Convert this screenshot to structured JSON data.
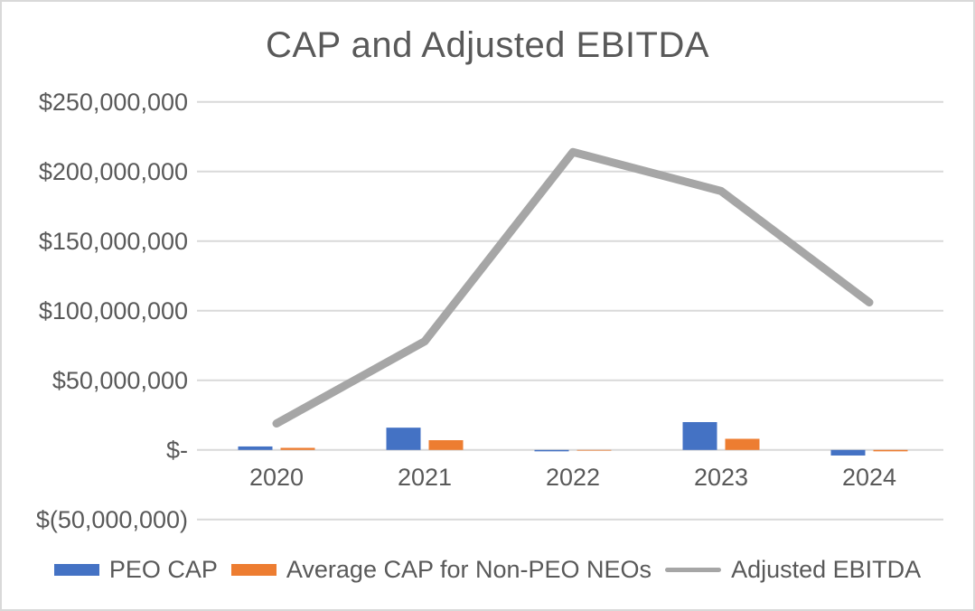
{
  "chart_data": {
    "type": "bar",
    "title": "CAP and Adjusted EBITDA",
    "categories": [
      "2020",
      "2021",
      "2022",
      "2023",
      "2024"
    ],
    "series": [
      {
        "name": "PEO CAP",
        "type": "bar",
        "color": "#4472C4",
        "values": [
          2500000,
          16000000,
          -1000000,
          20000000,
          -4000000
        ]
      },
      {
        "name": "Average CAP for Non-PEO NEOs",
        "type": "bar",
        "color": "#ED7D31",
        "values": [
          1500000,
          7000000,
          -500000,
          8000000,
          -1000000
        ]
      },
      {
        "name": "Adjusted EBITDA",
        "type": "line",
        "color": "#A6A6A6",
        "values": [
          19000000,
          78000000,
          214000000,
          186000000,
          106000000
        ]
      }
    ],
    "y_axis": {
      "min": -50000000,
      "max": 250000000,
      "step": 50000000,
      "tick_labels": [
        "$250,000,000",
        "$200,000,000",
        "$150,000,000",
        "$100,000,000",
        "$50,000,000",
        "$-",
        "$(50,000,000)"
      ]
    },
    "x_axis": {
      "tick_labels": [
        "2020",
        "2021",
        "2022",
        "2023",
        "2024"
      ]
    },
    "grid": true,
    "legend_position": "bottom",
    "colors": {
      "text": "#595959",
      "gridline": "#D9D9D9",
      "axis_line": "#D9D9D9",
      "background": "#FFFFFF"
    }
  }
}
